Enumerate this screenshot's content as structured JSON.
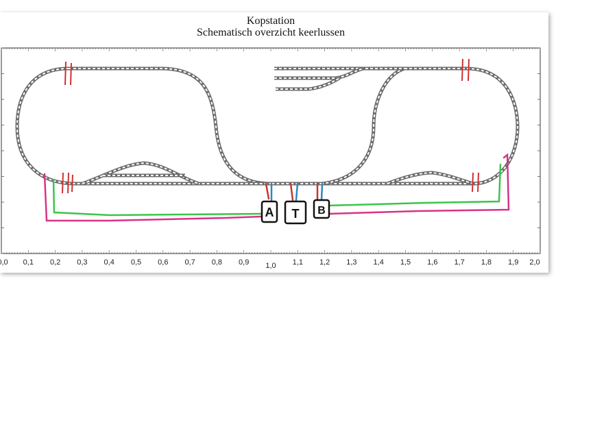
{
  "title": "Kopstation",
  "subtitle": "Schematisch overzicht keerlussen",
  "x_axis": {
    "ticks": [
      "0,0",
      "0,1",
      "0,2",
      "0,3",
      "0,4",
      "0,5",
      "0,6",
      "0,7",
      "0,8",
      "0,9",
      "1,0",
      "1,1",
      "1,2",
      "1,3",
      "1,4",
      "1,5",
      "1,6",
      "1,7",
      "1,8",
      "1,9",
      "2,0"
    ]
  },
  "boxes": [
    {
      "id": "a",
      "label": "A"
    },
    {
      "id": "t",
      "label": "T"
    },
    {
      "id": "b",
      "label": "B"
    }
  ],
  "colors": {
    "track": "#6b6b6b",
    "isolation": "#d03030",
    "wire_red": "#c0392b",
    "wire_blue": "#2e86c1",
    "wire_green": "#3cc44a",
    "wire_magenta": "#d63384",
    "box": "#111111"
  }
}
